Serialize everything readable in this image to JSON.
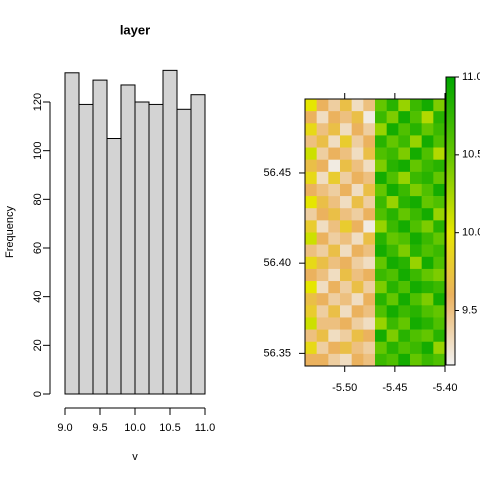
{
  "chart_data": [
    {
      "type": "histogram",
      "title": "layer",
      "x_label": "v",
      "y_label": "Frequency",
      "bins": [
        9.0,
        9.2,
        9.4,
        9.6,
        9.8,
        10.0,
        10.2,
        10.4,
        10.6,
        10.8,
        11.0
      ],
      "values": [
        132,
        119,
        129,
        105,
        127,
        120,
        119,
        133,
        117,
        123
      ],
      "color": "#d3d3d3",
      "xlim": [
        9,
        11
      ],
      "xticks": [
        {
          "value": 9,
          "label": "9.0"
        },
        9.5,
        {
          "value": 10,
          "label": "10.0"
        },
        10.5,
        {
          "value": 11,
          "label": "11.0"
        }
      ],
      "ylim": [
        0,
        135
      ],
      "yticks": [
        0,
        20,
        40,
        60,
        80,
        100,
        120
      ]
    },
    {
      "type": "raster",
      "xlim": [
        -5.5396,
        -5.4
      ],
      "ylim": [
        56.343,
        56.491
      ],
      "xticks": [
        {
          "value": -5.5,
          "label": "-5.50"
        },
        -5.45,
        {
          "value": -5.4,
          "label": "-5.40"
        }
      ],
      "yticks": [
        56.35,
        {
          "value": 56.4,
          "label": "56.40"
        },
        56.45
      ],
      "zlim": [
        9.15,
        11.0
      ],
      "zticks": [
        9.5,
        {
          "value": 10,
          "label": "10.0"
        },
        10.5,
        {
          "value": 11,
          "label": "11.0"
        }
      ],
      "colors": [
        [
          9.15,
          "#f2f2f2"
        ],
        [
          9.6,
          "#ebb25e"
        ],
        [
          10.0,
          "#e6e600"
        ],
        [
          10.5,
          "#63c600"
        ],
        [
          11.0,
          "#00a600"
        ]
      ],
      "values": [
        [
          10.0,
          9.6,
          9.4,
          9.7,
          9.3,
          9.5,
          10.5,
          10.8,
          10.3,
          10.7,
          10.9,
          10.4
        ],
        [
          9.6,
          9.3,
          9.6,
          9.5,
          9.7,
          9.2,
          10.7,
          10.4,
          10.9,
          10.6,
          10.2,
          10.8
        ],
        [
          9.9,
          9.5,
          9.7,
          9.3,
          9.6,
          9.4,
          10.3,
          10.9,
          10.6,
          10.8,
          10.5,
          10.7
        ],
        [
          9.5,
          9.7,
          9.3,
          9.8,
          9.4,
          9.6,
          10.8,
          10.5,
          10.7,
          10.3,
          10.9,
          10.6
        ],
        [
          10.1,
          9.4,
          9.6,
          9.5,
          9.3,
          9.7,
          10.6,
          10.7,
          10.4,
          10.9,
          10.6,
          10.2
        ],
        [
          9.7,
          9.6,
          9.2,
          9.7,
          9.5,
          9.3,
          10.4,
          10.8,
          10.9,
          10.5,
          10.7,
          10.8
        ],
        [
          9.9,
          9.3,
          9.8,
          9.4,
          9.6,
          9.5,
          10.9,
          10.6,
          10.3,
          10.7,
          10.8,
          10.5
        ],
        [
          9.6,
          9.5,
          9.4,
          9.6,
          9.3,
          9.7,
          10.5,
          10.9,
          10.7,
          10.4,
          10.6,
          10.9
        ],
        [
          10.0,
          9.7,
          9.5,
          9.3,
          9.7,
          9.4,
          10.7,
          10.3,
          10.8,
          10.9,
          10.5,
          10.6
        ],
        [
          9.4,
          9.6,
          9.7,
          9.5,
          9.4,
          9.6,
          10.6,
          10.8,
          10.5,
          10.7,
          10.9,
          10.3
        ],
        [
          9.8,
          9.3,
          9.5,
          9.8,
          9.6,
          9.2,
          10.3,
          10.7,
          10.9,
          10.6,
          10.4,
          10.8
        ],
        [
          10.1,
          9.6,
          9.4,
          9.5,
          9.3,
          9.7,
          10.8,
          10.5,
          10.6,
          10.9,
          10.7,
          10.5
        ],
        [
          9.5,
          9.4,
          9.7,
          9.3,
          9.6,
          9.5,
          10.9,
          10.7,
          10.4,
          10.8,
          10.6,
          10.7
        ],
        [
          9.9,
          9.7,
          9.5,
          9.6,
          9.4,
          9.3,
          10.5,
          10.9,
          10.8,
          10.3,
          10.9,
          10.6
        ],
        [
          9.6,
          9.5,
          9.3,
          9.7,
          9.5,
          9.6,
          10.7,
          10.6,
          10.9,
          10.7,
          10.5,
          10.4
        ],
        [
          10.0,
          9.3,
          9.6,
          9.4,
          9.7,
          9.4,
          10.4,
          10.8,
          10.6,
          10.9,
          10.8,
          10.7
        ],
        [
          9.7,
          9.6,
          9.4,
          9.5,
          9.3,
          9.6,
          10.8,
          10.5,
          10.9,
          10.6,
          10.4,
          10.9
        ],
        [
          9.8,
          9.4,
          9.7,
          9.3,
          9.6,
          9.5,
          10.6,
          10.9,
          10.7,
          10.8,
          10.6,
          10.5
        ],
        [
          10.1,
          9.5,
          9.5,
          9.6,
          9.4,
          9.3,
          10.3,
          10.7,
          10.5,
          10.9,
          10.8,
          10.6
        ],
        [
          9.5,
          9.7,
          9.3,
          9.4,
          9.7,
          9.6,
          10.9,
          10.4,
          10.8,
          10.6,
          10.5,
          10.8
        ],
        [
          9.9,
          9.4,
          9.6,
          9.7,
          9.5,
          9.4,
          10.5,
          10.8,
          10.6,
          10.7,
          10.9,
          10.3
        ],
        [
          9.6,
          9.6,
          9.4,
          9.3,
          9.6,
          9.5,
          10.7,
          10.6,
          10.9,
          10.5,
          10.7,
          10.6
        ]
      ]
    }
  ]
}
